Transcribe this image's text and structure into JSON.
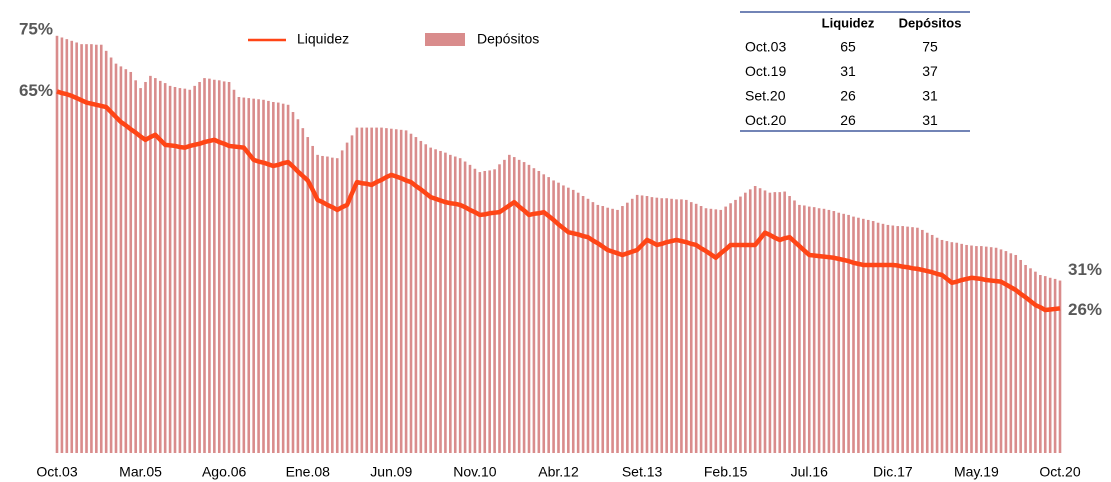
{
  "chart_data": {
    "type": "bar-line",
    "categories": [
      "Oct.03",
      null,
      null,
      null,
      null,
      null,
      null,
      null,
      null,
      null,
      null,
      null,
      null,
      null,
      null,
      null,
      null,
      "Mar.05",
      null,
      null,
      null,
      null,
      null,
      null,
      null,
      null,
      null,
      null,
      null,
      null,
      null,
      null,
      null,
      null,
      "Ago.06",
      null,
      null,
      null,
      null,
      null,
      null,
      null,
      null,
      null,
      null,
      null,
      null,
      null,
      null,
      null,
      null,
      "Ene.08",
      null,
      null,
      null,
      null,
      null,
      null,
      null,
      null,
      null,
      null,
      null,
      null,
      null,
      null,
      null,
      null,
      "Jun.09",
      null,
      null,
      null,
      null,
      null,
      null,
      null,
      null,
      null,
      null,
      null,
      null,
      null,
      null,
      null,
      null,
      "Nov.10",
      null,
      null,
      null,
      null,
      null,
      null,
      null,
      null,
      null,
      null,
      null,
      null,
      null,
      null,
      null,
      null,
      "Abr.12",
      null,
      null,
      null,
      null,
      null,
      null,
      null,
      null,
      null,
      null,
      null,
      null,
      null,
      null,
      null,
      null,
      "Set.13",
      null,
      null,
      null,
      null,
      null,
      null,
      null,
      null,
      null,
      null,
      null,
      null,
      null,
      null,
      null,
      null,
      "Feb.15",
      null,
      null,
      null,
      null,
      null,
      null,
      null,
      null,
      null,
      null,
      null,
      null,
      null,
      null,
      null,
      null,
      "Jul.16",
      null,
      null,
      null,
      null,
      null,
      null,
      null,
      null,
      null,
      null,
      null,
      null,
      null,
      null,
      null,
      null,
      "Dic.17",
      null,
      null,
      null,
      null,
      null,
      null,
      null,
      null,
      null,
      null,
      null,
      null,
      null,
      null,
      null,
      null,
      "May.19",
      null,
      null,
      null,
      null,
      null,
      null,
      null,
      null,
      null,
      null,
      null,
      null,
      null,
      null,
      null,
      null,
      "Oct.20"
    ],
    "ylim": [
      0,
      80
    ],
    "series": [
      {
        "name": "Liquidez",
        "kind": "line",
        "color": "#ff4516",
        "values": [
          65,
          64.7,
          64.5,
          64.2,
          63.8,
          63.4,
          63,
          62.8,
          62.6,
          62.4,
          62.2,
          61.3,
          60.4,
          59.5,
          58.9,
          58.2,
          57.6,
          56.9,
          56.3,
          56.8,
          57.2,
          56.3,
          55.4,
          55.3,
          55.2,
          55,
          54.9,
          55.2,
          55.4,
          55.6,
          55.9,
          56.1,
          56.3,
          55.9,
          55.6,
          55.2,
          55.1,
          55,
          54.9,
          53.8,
          52.7,
          52.4,
          52.2,
          51.9,
          51.6,
          51.8,
          52.1,
          52.3,
          51.5,
          50.6,
          49.8,
          49,
          47.3,
          45.5,
          45.1,
          44.6,
          44.2,
          43.7,
          44.2,
          44.6,
          46.7,
          48.7,
          48.5,
          48.4,
          48.2,
          48.7,
          49.1,
          49.6,
          50,
          49.7,
          49.4,
          49,
          48.7,
          48,
          47.4,
          46.7,
          46,
          45.7,
          45.4,
          45.1,
          44.9,
          44.8,
          44.6,
          44.2,
          43.7,
          43.3,
          42.8,
          42.9,
          43.1,
          43.2,
          43.3,
          43.9,
          44.5,
          45.1,
          44.3,
          43.6,
          42.8,
          43,
          43.1,
          43.3,
          42.6,
          41.9,
          41.1,
          40.4,
          39.7,
          39.5,
          39.3,
          39,
          38.8,
          38.2,
          37.7,
          37.1,
          36.5,
          36.2,
          35.9,
          35.6,
          35.9,
          36.2,
          36.5,
          37.4,
          38.3,
          37.9,
          37.4,
          37.6,
          37.9,
          38.1,
          38.3,
          38.1,
          37.9,
          37.6,
          37.4,
          36.8,
          36.3,
          35.7,
          35.1,
          35.9,
          36.6,
          37.4,
          37.4,
          37.4,
          37.4,
          37.4,
          37.4,
          38.5,
          39.6,
          39.2,
          38.7,
          38.3,
          38.6,
          38.8,
          38,
          37.2,
          36.4,
          35.6,
          35.5,
          35.4,
          35.3,
          35.2,
          35.1,
          34.9,
          34.7,
          34.5,
          34.2,
          34,
          33.8,
          33.8,
          33.8,
          33.8,
          33.8,
          33.8,
          33.8,
          33.7,
          33.5,
          33.4,
          33.2,
          33.1,
          32.9,
          32.7,
          32.5,
          32.2,
          32,
          31.3,
          30.6,
          30.8,
          31.1,
          31.3,
          31.5,
          31.4,
          31.3,
          31.1,
          31,
          30.9,
          30.8,
          30.3,
          29.8,
          29.3,
          28.6,
          28,
          27.3,
          26.6,
          26.2,
          25.7,
          25.8,
          25.9,
          26
        ],
        "value_labels": [
          "65%",
          null,
          null,
          null,
          null,
          null,
          null,
          null,
          null,
          null,
          null,
          null,
          null,
          null,
          null,
          null,
          null,
          null,
          null,
          null,
          null,
          null,
          null,
          null,
          null,
          null,
          null,
          null,
          null,
          null,
          null,
          null,
          null,
          null,
          null,
          null,
          null,
          null,
          null,
          null,
          null,
          null,
          null,
          null,
          null,
          null,
          null,
          null,
          null,
          null,
          null,
          null,
          null,
          null,
          null,
          null,
          null,
          null,
          null,
          null,
          null,
          null,
          null,
          null,
          null,
          null,
          null,
          null,
          null,
          null,
          null,
          null,
          null,
          null,
          null,
          null,
          null,
          null,
          null,
          null,
          null,
          null,
          null,
          null,
          null,
          null,
          null,
          null,
          null,
          null,
          null,
          null,
          null,
          null,
          null,
          null,
          null,
          null,
          null,
          null,
          null,
          null,
          null,
          null,
          null,
          null,
          null,
          null,
          null,
          null,
          null,
          null,
          null,
          null,
          null,
          null,
          null,
          null,
          null,
          null,
          null,
          null,
          null,
          null,
          null,
          null,
          null,
          null,
          null,
          null,
          null,
          null,
          null,
          null,
          null,
          null,
          null,
          null,
          null,
          null,
          null,
          null,
          null,
          null,
          null,
          null,
          null,
          null,
          null,
          null,
          null,
          null,
          null,
          null,
          null,
          null,
          null,
          null,
          null,
          null,
          null,
          null,
          null,
          null,
          null,
          null,
          null,
          null,
          null,
          null,
          null,
          null,
          null,
          null,
          null,
          null,
          null,
          null,
          null,
          null,
          null,
          null,
          null,
          null,
          null,
          null,
          null,
          null,
          null,
          null,
          null,
          null,
          null,
          null,
          null,
          null,
          null,
          null,
          null,
          null,
          null,
          null,
          null,
          null,
          "26%"
        ]
      },
      {
        "name": "Depósitos",
        "kind": "bar",
        "color": "#d98c8c",
        "values": [
          75,
          74.7,
          74.4,
          74.1,
          73.8,
          73.5,
          73.5,
          73.5,
          73.4,
          73.4,
          72.3,
          71.1,
          70,
          69.5,
          69,
          68.5,
          67,
          65.6,
          66.7,
          67.8,
          67.4,
          66.9,
          66.5,
          66,
          65.8,
          65.6,
          65.5,
          65.3,
          66,
          66.7,
          67.4,
          67.3,
          67.1,
          67,
          66.8,
          66.7,
          65.3,
          64,
          63.9,
          63.8,
          63.7,
          63.6,
          63.5,
          63.3,
          63.1,
          63,
          62.8,
          62.6,
          61.3,
          60,
          58.4,
          56.8,
          55.2,
          53.6,
          53.4,
          53.3,
          53.1,
          53,
          54.4,
          55.8,
          57.1,
          58.5,
          58.5,
          58.5,
          58.5,
          58.5,
          58.5,
          58.4,
          58.3,
          58.2,
          58.1,
          58,
          57.4,
          56.8,
          56.1,
          55.5,
          54.9,
          54.6,
          54.3,
          54,
          53.6,
          53.3,
          53,
          52.4,
          51.8,
          51.1,
          50.5,
          50.7,
          50.8,
          51,
          51.9,
          52.7,
          53.6,
          53.2,
          52.7,
          52.3,
          51.8,
          51.2,
          50.7,
          50.1,
          49.6,
          49,
          48.6,
          48.1,
          47.7,
          47.3,
          46.8,
          46.2,
          45.7,
          45.1,
          44.6,
          44.4,
          44.1,
          43.9,
          43.7,
          44.4,
          45,
          45.7,
          46.4,
          46.3,
          46.2,
          46,
          45.9,
          45.8,
          45.8,
          45.7,
          45.6,
          45.6,
          45.5,
          45.1,
          44.8,
          44.4,
          44,
          43.9,
          43.8,
          43.7,
          44.3,
          44.9,
          45.5,
          46.1,
          46.8,
          47.4,
          48,
          47.6,
          47.2,
          46.8,
          46.9,
          46.9,
          47,
          46.2,
          45.4,
          44.6,
          44.5,
          44.3,
          44.2,
          44,
          43.9,
          43.7,
          43.5,
          43.2,
          43,
          42.8,
          42.5,
          42.3,
          42.1,
          41.9,
          41.7,
          41.4,
          41.2,
          41,
          40.9,
          40.8,
          40.8,
          40.7,
          40.6,
          40.5,
          40.1,
          39.6,
          39.2,
          38.7,
          38.3,
          38.1,
          37.9,
          37.8,
          37.6,
          37.4,
          37.3,
          37.2,
          37.2,
          37.1,
          37,
          36.9,
          36.6,
          36.3,
          35.9,
          35.6,
          34.7,
          33.8,
          33.2,
          32.6,
          32,
          31.8,
          31.5,
          31.3,
          31
        ],
        "value_labels": [
          "75%",
          null,
          null,
          null,
          null,
          null,
          null,
          null,
          null,
          null,
          null,
          null,
          null,
          null,
          null,
          null,
          null,
          null,
          null,
          null,
          null,
          null,
          null,
          null,
          null,
          null,
          null,
          null,
          null,
          null,
          null,
          null,
          null,
          null,
          null,
          null,
          null,
          null,
          null,
          null,
          null,
          null,
          null,
          null,
          null,
          null,
          null,
          null,
          null,
          null,
          null,
          null,
          null,
          null,
          null,
          null,
          null,
          null,
          null,
          null,
          null,
          null,
          null,
          null,
          null,
          null,
          null,
          null,
          null,
          null,
          null,
          null,
          null,
          null,
          null,
          null,
          null,
          null,
          null,
          null,
          null,
          null,
          null,
          null,
          null,
          null,
          null,
          null,
          null,
          null,
          null,
          null,
          null,
          null,
          null,
          null,
          null,
          null,
          null,
          null,
          null,
          null,
          null,
          null,
          null,
          null,
          null,
          null,
          null,
          null,
          null,
          null,
          null,
          null,
          null,
          null,
          null,
          null,
          null,
          null,
          null,
          null,
          null,
          null,
          null,
          null,
          null,
          null,
          null,
          null,
          null,
          null,
          null,
          null,
          null,
          null,
          null,
          null,
          null,
          null,
          null,
          null,
          null,
          null,
          null,
          null,
          null,
          null,
          null,
          null,
          null,
          null,
          null,
          null,
          null,
          null,
          null,
          null,
          null,
          null,
          null,
          null,
          null,
          null,
          null,
          null,
          null,
          null,
          null,
          null,
          null,
          null,
          null,
          null,
          null,
          null,
          null,
          null,
          null,
          null,
          null,
          null,
          null,
          null,
          null,
          null,
          null,
          null,
          null,
          null,
          null,
          null,
          null,
          null,
          null,
          null,
          null,
          null,
          null,
          null,
          null,
          null,
          null,
          null,
          "31%"
        ]
      }
    ],
    "table": {
      "columns": [
        "Liquidez",
        "Depósitos"
      ],
      "rows": [
        {
          "label": "Oct.03",
          "values": [
            65,
            75
          ]
        },
        {
          "label": "Oct.19",
          "values": [
            31,
            37
          ]
        },
        {
          "label": "Set.20",
          "values": [
            26,
            31
          ]
        },
        {
          "label": "Oct.20",
          "values": [
            26,
            31
          ]
        }
      ]
    }
  }
}
